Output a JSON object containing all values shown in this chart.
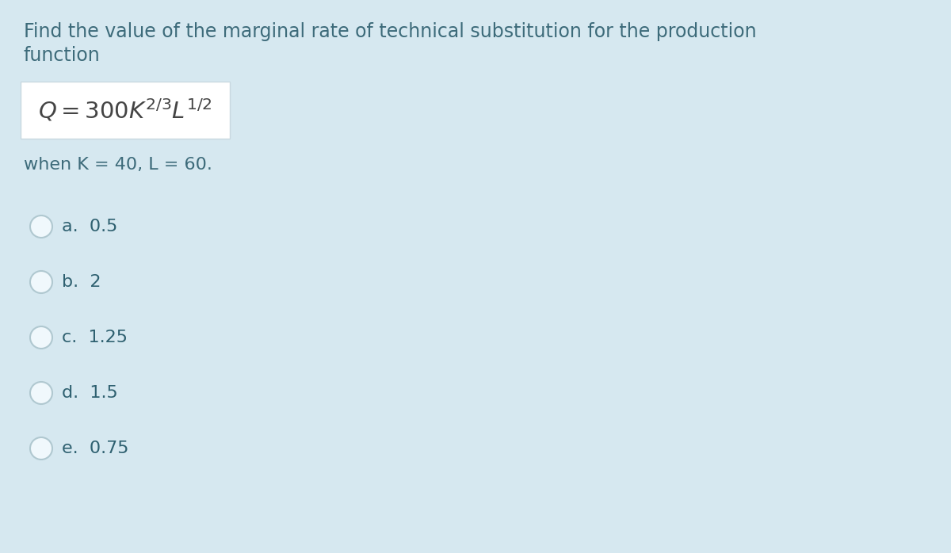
{
  "background_color": "#d6e8f0",
  "title_line1": "Find the value of the marginal rate of technical substitution for the production",
  "title_line2": "function",
  "formula_box_color": "#ffffff",
  "formula_text": "$Q = 300K^{2/3}L^{1/2}$",
  "condition_text": "when K = 40, L = 60.",
  "options": [
    "a.  0.5",
    "b.  2",
    "c.  1.25",
    "d.  1.5",
    "e.  0.75"
  ],
  "text_color": "#3d6b7a",
  "formula_color": "#444444",
  "option_text_color": "#2e6070",
  "radio_fill_color": "#f0f8fc",
  "radio_edge_color": "#b0c8d0",
  "title_fontsize": 17,
  "condition_fontsize": 16,
  "option_fontsize": 16,
  "formula_fontsize": 21
}
